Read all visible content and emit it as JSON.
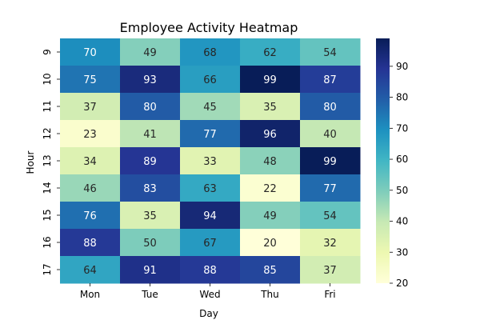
{
  "chart_data": {
    "type": "heatmap",
    "title": "Employee Activity Heatmap",
    "xlabel": "Day",
    "ylabel": "Hour",
    "x_categories": [
      "Mon",
      "Tue",
      "Wed",
      "Thu",
      "Fri"
    ],
    "y_categories": [
      "9",
      "10",
      "11",
      "12",
      "13",
      "14",
      "15",
      "16",
      "17"
    ],
    "values": [
      [
        70,
        49,
        68,
        62,
        54
      ],
      [
        75,
        93,
        66,
        99,
        87
      ],
      [
        37,
        80,
        45,
        35,
        80
      ],
      [
        23,
        41,
        77,
        96,
        40
      ],
      [
        34,
        89,
        33,
        48,
        99
      ],
      [
        46,
        83,
        63,
        22,
        77
      ],
      [
        76,
        35,
        94,
        49,
        54
      ],
      [
        88,
        50,
        67,
        20,
        32
      ],
      [
        64,
        91,
        88,
        85,
        37
      ]
    ],
    "colormap": "YlGnBu",
    "vmin": 20,
    "vmax": 99,
    "colorbar_ticks": [
      20,
      30,
      40,
      50,
      60,
      70,
      80,
      90
    ],
    "annotated": true
  }
}
